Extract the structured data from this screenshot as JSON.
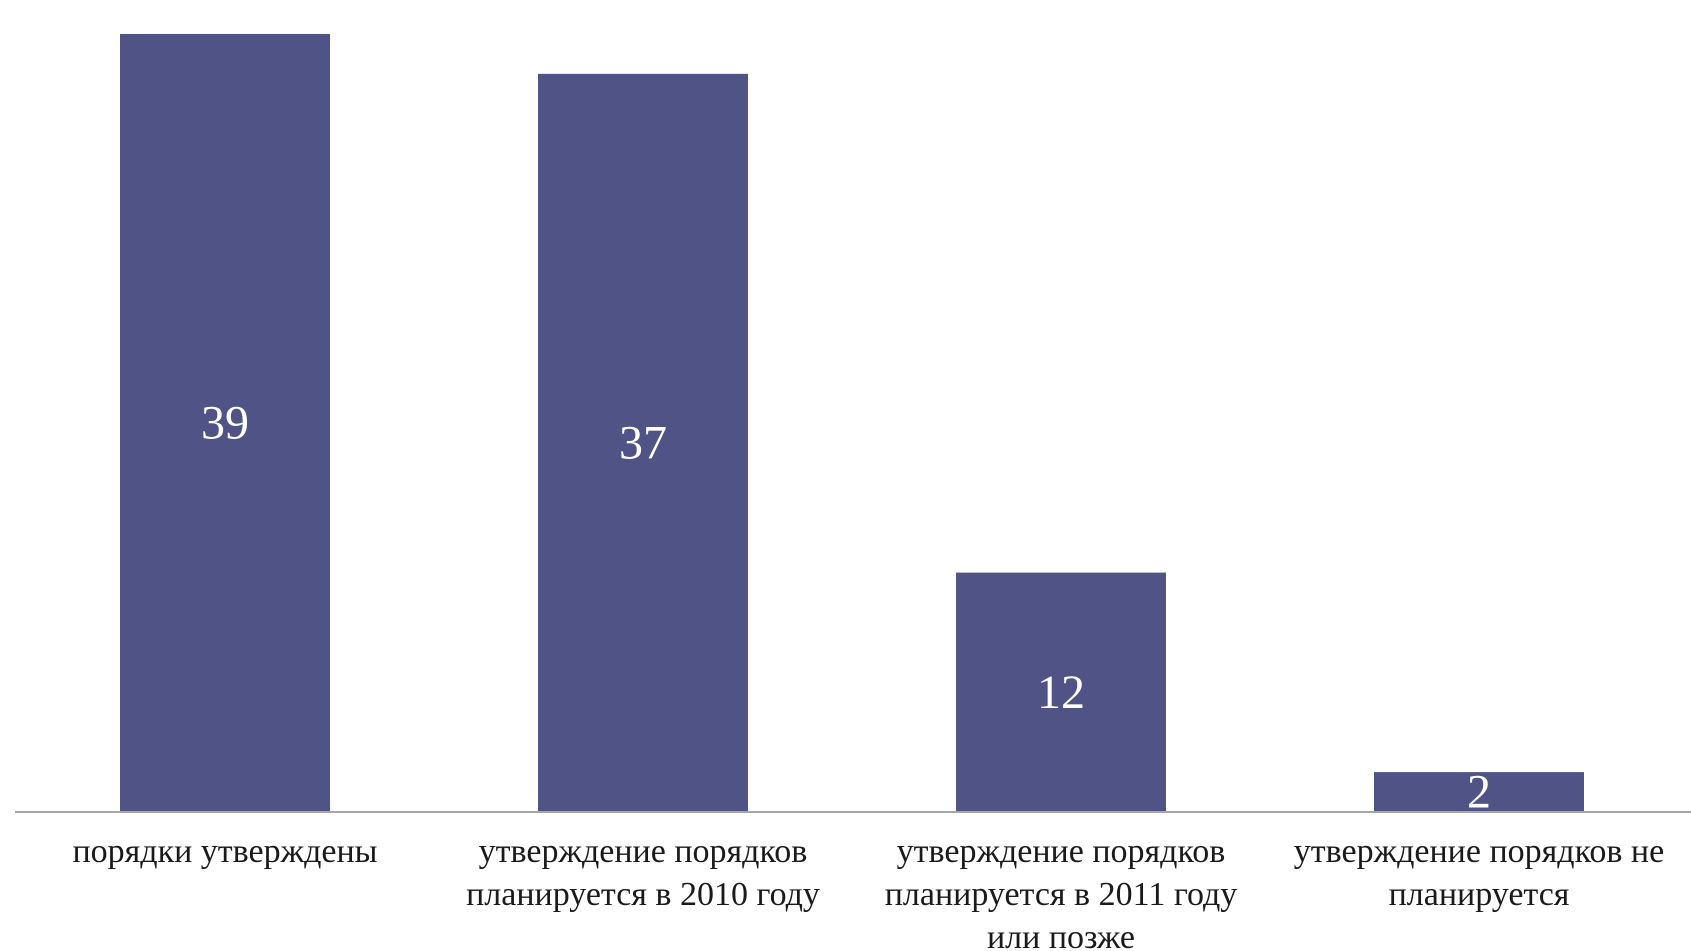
{
  "chart_data": {
    "type": "bar",
    "title": "",
    "xlabel": "",
    "ylabel": "",
    "categories": [
      [
        "порядки утверждены"
      ],
      [
        "утверждение порядков",
        "планируется в 2010 году"
      ],
      [
        "утверждение порядков",
        "планируется в 2011 году",
        "или позже"
      ],
      [
        "утверждение порядков не",
        "планируется"
      ]
    ],
    "values": [
      39,
      37,
      12,
      2
    ],
    "data_labels": [
      "39",
      "37",
      "12",
      "2"
    ],
    "ylim": [
      0,
      40
    ],
    "grid": false,
    "legend": "none",
    "colors": {
      "bar": "#505386",
      "axis": "#a6a6a6",
      "data_label": "#ffffff",
      "category_label": "#1a1a1a"
    }
  }
}
